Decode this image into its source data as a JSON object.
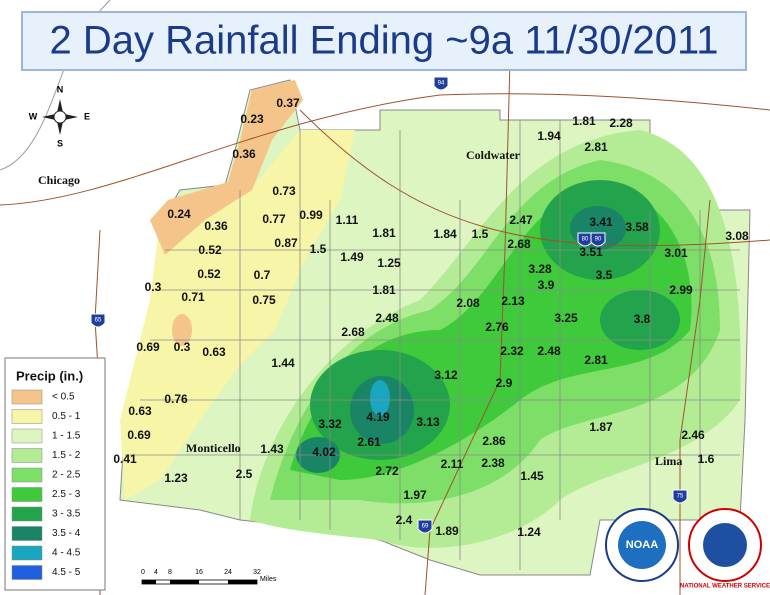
{
  "title": "2 Day Rainfall Ending ~9a 11/30/2011",
  "cities": [
    "Chicago",
    "Coldwater",
    "Monticello",
    "Lima"
  ],
  "rainfall_labels": [
    0.37,
    0.23,
    0.36,
    0.73,
    0.24,
    0.36,
    0.77,
    0.99,
    1.11,
    0.52,
    0.87,
    1.5,
    1.49,
    1.81,
    1.25,
    1.84,
    1.5,
    2.47,
    2.68,
    0.52,
    0.7,
    0.3,
    0.71,
    0.75,
    1.81,
    2.08,
    2.13,
    3.28,
    3.9,
    3.5,
    2.99,
    3.01,
    3.08,
    3.58,
    3.41,
    3.51,
    1.94,
    1.81,
    2.28,
    2.81,
    2.48,
    2.68,
    2.76,
    3.25,
    3.8,
    0.69,
    0.3,
    0.63,
    1.44,
    2.32,
    2.48,
    2.81,
    3.12,
    2.9,
    0.76,
    0.63,
    0.69,
    3.32,
    4.19,
    3.13,
    2.86,
    1.87,
    2.46,
    0.41,
    1.43,
    4.02,
    2.61,
    2.38,
    1.6,
    1.23,
    2.5,
    2.72,
    2.11,
    1.45,
    1.97,
    2.4,
    1.89,
    1.24
  ],
  "legend": {
    "title": "Precip (in.)",
    "items": [
      {
        "label": "< 0.5",
        "color": "#f5c48a"
      },
      {
        "label": "0.5 - 1",
        "color": "#f7f5a8"
      },
      {
        "label": "1 - 1.5",
        "color": "#ddf5c0"
      },
      {
        "label": "1.5 - 2",
        "color": "#b3ec94"
      },
      {
        "label": "2 - 2.5",
        "color": "#7ddf68"
      },
      {
        "label": "2.5 - 3",
        "color": "#3fca3c"
      },
      {
        "label": "3 - 3.5",
        "color": "#23a34b"
      },
      {
        "label": "3.5 - 4",
        "color": "#1a8466"
      },
      {
        "label": "4 - 4.5",
        "color": "#19a6bf"
      },
      {
        "label": "4.5 - 5",
        "color": "#2060e0"
      }
    ]
  },
  "scale_bar": {
    "labels": [
      "0",
      "4",
      "8",
      "16",
      "24",
      "32"
    ],
    "unit": "Miles"
  },
  "compass": {
    "n": "N",
    "s": "S",
    "e": "E",
    "w": "W"
  },
  "shields": [
    "94",
    "65",
    "80",
    "90",
    "69",
    "75"
  ],
  "logos": {
    "noaa": "NOAA",
    "nws": "NATIONAL WEATHER SERVICE"
  }
}
